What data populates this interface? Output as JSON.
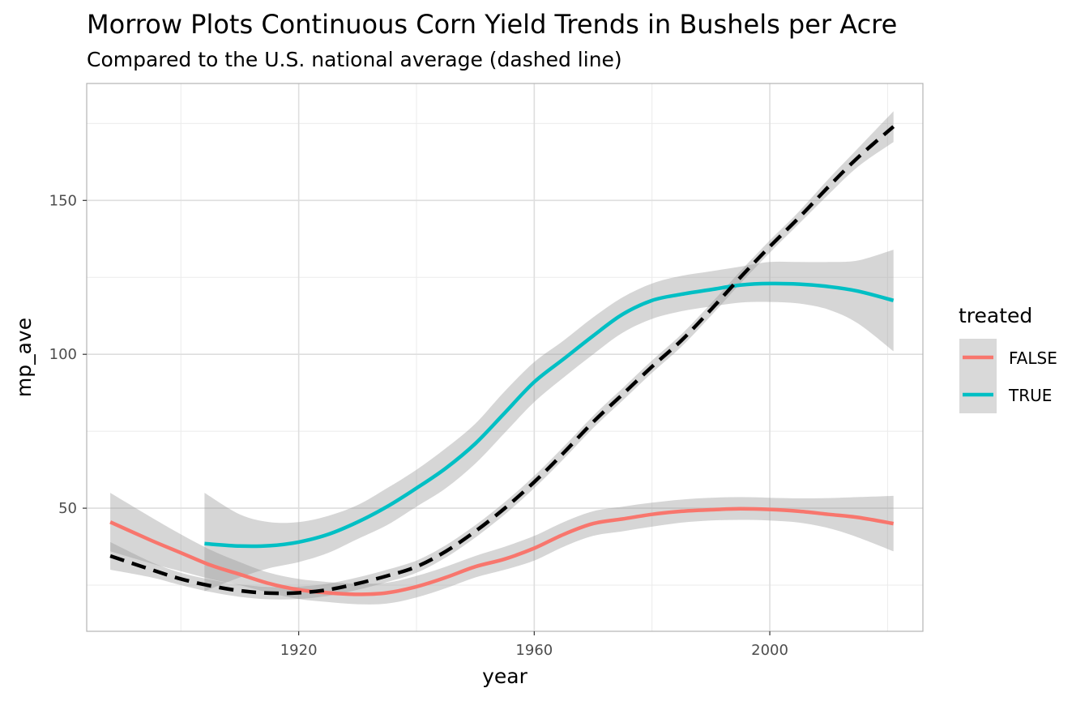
{
  "chart_data": {
    "type": "line",
    "title": "Morrow Plots Continuous Corn Yield Trends in Bushels per Acre",
    "subtitle": "Compared to the U.S. national average (dashed line)",
    "xlabel": "year",
    "ylabel": "mp_ave",
    "xlim": [
      1884,
      2026
    ],
    "ylim": [
      10,
      188
    ],
    "x_ticks": [
      1920,
      1960,
      2000
    ],
    "y_ticks": [
      50,
      100,
      150
    ],
    "x_minor": [
      1900,
      1940,
      1980,
      2020
    ],
    "y_minor": [
      25,
      75,
      125,
      175
    ],
    "legend": {
      "title": "treated",
      "position": "right"
    },
    "series": [
      {
        "name": "FALSE",
        "color": "#F8766D",
        "style": "solid",
        "x": [
          1888,
          1895,
          1900,
          1905,
          1910,
          1915,
          1920,
          1925,
          1930,
          1935,
          1940,
          1945,
          1950,
          1955,
          1960,
          1965,
          1970,
          1975,
          1980,
          1985,
          1990,
          1995,
          2000,
          2005,
          2010,
          2015,
          2021
        ],
        "y": [
          45.5,
          39.5,
          35.5,
          31.5,
          28.5,
          25.5,
          23.5,
          22.5,
          22,
          22.5,
          24.5,
          27.5,
          31,
          33.5,
          37,
          41.5,
          45,
          46.5,
          48,
          49,
          49.5,
          49.8,
          49.6,
          49,
          48,
          47,
          45
        ],
        "band_upper": [
          55,
          47,
          41.5,
          36.5,
          32.5,
          29,
          27,
          26,
          25.5,
          25.8,
          28,
          31,
          34.5,
          37.5,
          41,
          45.5,
          49,
          50.5,
          51.8,
          52.8,
          53.4,
          53.6,
          53.4,
          53.2,
          53.3,
          53.6,
          54
        ],
        "band_lower": [
          36,
          32,
          29.5,
          27,
          25,
          22.5,
          20.5,
          19.5,
          18.8,
          19,
          21,
          24,
          27.5,
          30,
          33,
          37.5,
          41,
          42.5,
          44,
          45.3,
          46,
          46.2,
          46,
          45.3,
          43.5,
          40.5,
          36
        ]
      },
      {
        "name": "TRUE",
        "color": "#00BFC4",
        "style": "solid",
        "x": [
          1904,
          1910,
          1915,
          1920,
          1925,
          1930,
          1935,
          1940,
          1945,
          1950,
          1955,
          1960,
          1965,
          1970,
          1975,
          1980,
          1985,
          1990,
          1995,
          2000,
          2005,
          2010,
          2015,
          2021
        ],
        "y": [
          38.5,
          37.7,
          37.8,
          39,
          41.5,
          45.5,
          50.5,
          56.5,
          63,
          71,
          81,
          91,
          98.5,
          106,
          113,
          117.5,
          119.5,
          121,
          122.5,
          123,
          122.8,
          122,
          120.5,
          117.5
        ],
        "band_upper": [
          55,
          48,
          45.5,
          45.5,
          47.5,
          51,
          56.5,
          62.5,
          69.5,
          77.5,
          88,
          97.5,
          104.5,
          112,
          118.5,
          123,
          125.5,
          127,
          128.5,
          130,
          130,
          130,
          130.5,
          134
        ],
        "band_lower": [
          23,
          27.5,
          30.5,
          32.5,
          35.5,
          40,
          44.5,
          50.5,
          56.5,
          64.5,
          74.5,
          84.5,
          92.5,
          100,
          107,
          111.5,
          114,
          115.5,
          116.8,
          117,
          116.5,
          114.5,
          110,
          101
        ]
      },
      {
        "name": "U.S. national average",
        "color": "#000000",
        "style": "dashed",
        "x": [
          1888,
          1895,
          1900,
          1905,
          1910,
          1915,
          1920,
          1925,
          1930,
          1935,
          1940,
          1945,
          1950,
          1955,
          1960,
          1965,
          1970,
          1975,
          1980,
          1985,
          1990,
          1995,
          2000,
          2005,
          2010,
          2015,
          2021
        ],
        "y": [
          34.5,
          30,
          27,
          24.8,
          23.2,
          22.4,
          22.5,
          23.5,
          25.5,
          28,
          31,
          36,
          42.5,
          50,
          58.5,
          68,
          78,
          87,
          96,
          104.5,
          114.5,
          125,
          135,
          144.5,
          154.5,
          164,
          174
        ],
        "band_upper": [
          39,
          32.5,
          29,
          26.8,
          25.2,
          24.4,
          24.5,
          25.5,
          27.5,
          30,
          33,
          38,
          44.5,
          52,
          60.5,
          70,
          80,
          89,
          98,
          106.5,
          116.5,
          127,
          137,
          146.5,
          157,
          167,
          179
        ],
        "band_lower": [
          30,
          27.5,
          25,
          22.8,
          21.2,
          20.4,
          20.5,
          21.5,
          23.5,
          26,
          29,
          34,
          40.5,
          48,
          56.5,
          66,
          76,
          85,
          94,
          102.5,
          112.5,
          123,
          133,
          142.5,
          152,
          161,
          169
        ]
      }
    ]
  }
}
